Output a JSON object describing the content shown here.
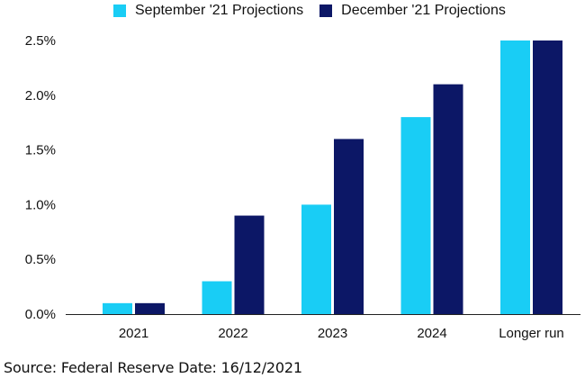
{
  "chart_data": {
    "type": "bar",
    "categories": [
      "2021",
      "2022",
      "2023",
      "2024",
      "Longer run"
    ],
    "series": [
      {
        "name": "September '21 Projections",
        "color": "#19cdf5",
        "values": [
          0.1,
          0.3,
          1.0,
          1.8,
          2.5
        ]
      },
      {
        "name": "December '21 Projections",
        "color": "#0c1766",
        "values": [
          0.1,
          0.9,
          1.6,
          2.1,
          2.5
        ]
      }
    ],
    "yticks": [
      "0.0%",
      "0.5%",
      "1.0%",
      "1.5%",
      "2.0%",
      "2.5%"
    ],
    "ylim": [
      0,
      2.5
    ],
    "grid": false,
    "legend_position": "top"
  },
  "source_text": "Source: Federal Reserve  Date: 16/12/2021"
}
